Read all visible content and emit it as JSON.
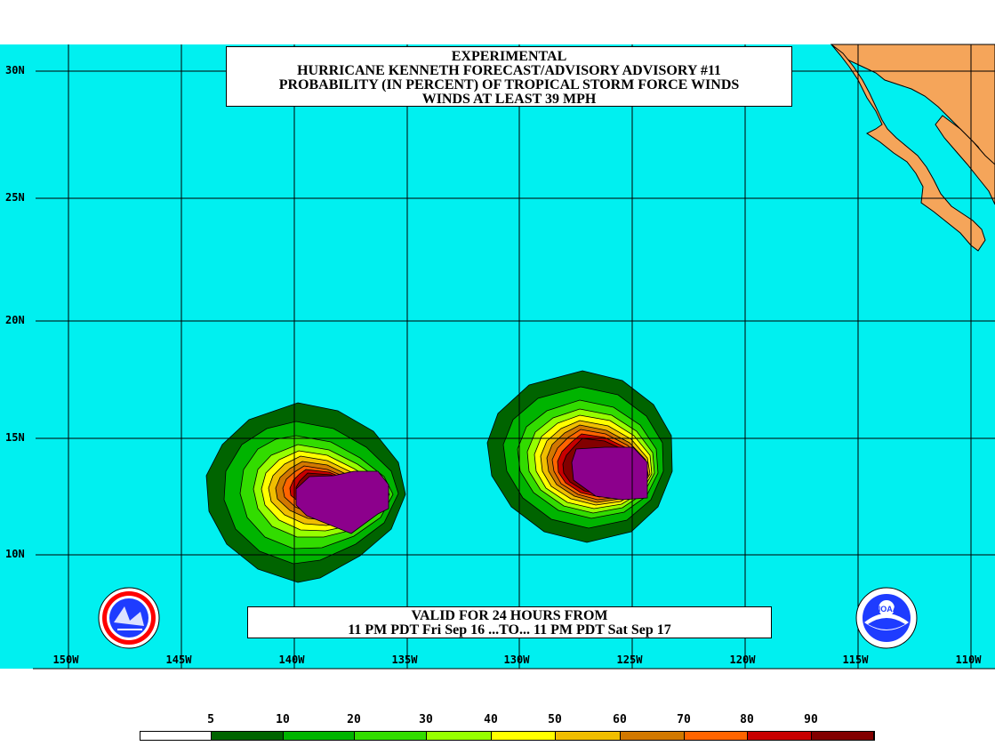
{
  "title": {
    "line1": "EXPERIMENTAL",
    "line2": "HURRICANE KENNETH FORECAST/ADVISORY ADVISORY #11",
    "line3": "PROBABILITY (IN PERCENT) OF TROPICAL STORM FORCE WINDS",
    "line4": "WINDS AT LEAST 39 MPH"
  },
  "valid": {
    "line1": "VALID FOR 24 HOURS FROM",
    "line2": "11 PM PDT Fri Sep 16 ...TO... 11 PM PDT Sat Sep 17"
  },
  "lat_labels": [
    "30N",
    "25N",
    "20N",
    "15N",
    "10N"
  ],
  "lon_labels": [
    "150W",
    "145W",
    "140W",
    "135W",
    "130W",
    "125W",
    "120W",
    "115W",
    "110W"
  ],
  "legend": {
    "labels": [
      "5",
      "10",
      "20",
      "30",
      "40",
      "50",
      "60",
      "70",
      "80",
      "90"
    ],
    "colors": [
      "#ffffff",
      "#006400",
      "#00b400",
      "#32dc00",
      "#96ff00",
      "#ffff00",
      "#f0be00",
      "#d27800",
      "#ff6400",
      "#c80000",
      "#820000",
      "#8c008c"
    ]
  },
  "colors": {
    "ocean": "#00f0f0",
    "land": "#f5a55a",
    "grid": "#000000"
  },
  "icons": {
    "nws_logo": "nws-logo-icon",
    "noaa_logo": "noaa-logo-icon"
  }
}
